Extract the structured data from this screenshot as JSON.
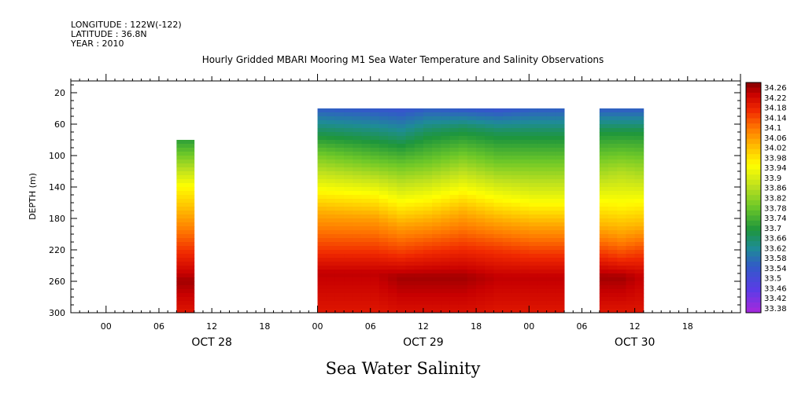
{
  "header": {
    "longitude": "LONGITUDE : 122W(-122)",
    "latitude": "LATITUDE : 36.8N",
    "year": "YEAR : 2010"
  },
  "colors": {
    "background": "#ffffff",
    "axis": "#000000"
  },
  "chart_data": {
    "type": "heatmap",
    "title": "Hourly Gridded MBARI Mooring M1 Sea Water Temperature and Salinity Observations",
    "subtitle": "Sea Water Salinity",
    "ylabel": "DEPTH (m)",
    "y_axis": {
      "inverted": true,
      "ylim": [
        5,
        300
      ],
      "ticks": [
        20,
        60,
        100,
        140,
        180,
        220,
        260,
        300
      ]
    },
    "x_axis": {
      "hour_ticks": [
        "00",
        "06",
        "12",
        "18",
        "00",
        "06",
        "12",
        "18",
        "00",
        "06",
        "12",
        "18"
      ],
      "day_labels": [
        "OCT 28",
        "OCT 29",
        "OCT 30"
      ],
      "start": "2010-10-27T20:00",
      "end": "2010-10-31T00:00"
    },
    "colorbar": {
      "min": 33.38,
      "max": 34.28,
      "labels": [
        "34.26",
        "34.22",
        "34.18",
        "34.14",
        "34.1",
        "34.06",
        "34.02",
        "33.98",
        "33.94",
        "33.9",
        "33.86",
        "33.82",
        "33.78",
        "33.74",
        "33.7",
        "33.66",
        "33.62",
        "33.58",
        "33.54",
        "33.5",
        "33.46",
        "33.42",
        "33.38"
      ]
    },
    "segments": [
      {
        "start": "2010-10-28T08:00",
        "end": "2010-10-28T09:00",
        "depth_top": 80,
        "columns": [
          {
            "time": "2010-10-28T08:00",
            "profile": [
              [
                80,
                33.72
              ],
              [
                120,
                33.88
              ],
              [
                140,
                33.96
              ],
              [
                180,
                34.06
              ],
              [
                220,
                34.16
              ],
              [
                260,
                34.26
              ],
              [
                300,
                34.2
              ]
            ]
          }
        ]
      },
      {
        "start": "2010-10-29T00:00",
        "end": "2010-10-30T03:00",
        "depth_top": 40,
        "columns": [
          {
            "time": "2010-10-29T00:00",
            "profile": [
              [
                40,
                33.56
              ],
              [
                70,
                33.68
              ],
              [
                100,
                33.8
              ],
              [
                140,
                33.94
              ],
              [
                170,
                34.04
              ],
              [
                220,
                34.16
              ],
              [
                250,
                34.24
              ],
              [
                300,
                34.2
              ]
            ]
          },
          {
            "time": "2010-10-29T06:00",
            "profile": [
              [
                40,
                33.55
              ],
              [
                70,
                33.66
              ],
              [
                110,
                33.8
              ],
              [
                150,
                33.96
              ],
              [
                180,
                34.06
              ],
              [
                220,
                34.16
              ],
              [
                250,
                34.24
              ],
              [
                300,
                34.2
              ]
            ]
          },
          {
            "time": "2010-10-29T09:00",
            "profile": [
              [
                40,
                33.54
              ],
              [
                75,
                33.66
              ],
              [
                120,
                33.82
              ],
              [
                160,
                33.96
              ],
              [
                190,
                34.06
              ],
              [
                225,
                34.16
              ],
              [
                255,
                34.26
              ],
              [
                300,
                34.21
              ]
            ]
          },
          {
            "time": "2010-10-29T12:00",
            "profile": [
              [
                40,
                33.56
              ],
              [
                70,
                33.68
              ],
              [
                110,
                33.8
              ],
              [
                150,
                33.94
              ],
              [
                180,
                34.04
              ],
              [
                220,
                34.16
              ],
              [
                255,
                34.26
              ],
              [
                300,
                34.21
              ]
            ]
          },
          {
            "time": "2010-10-29T16:00",
            "profile": [
              [
                40,
                33.55
              ],
              [
                65,
                33.68
              ],
              [
                100,
                33.8
              ],
              [
                140,
                33.94
              ],
              [
                170,
                34.04
              ],
              [
                215,
                34.16
              ],
              [
                255,
                34.26
              ],
              [
                300,
                34.21
              ]
            ]
          },
          {
            "time": "2010-10-29T20:00",
            "profile": [
              [
                40,
                33.54
              ],
              [
                70,
                33.68
              ],
              [
                110,
                33.8
              ],
              [
                150,
                33.94
              ],
              [
                180,
                34.04
              ],
              [
                220,
                34.16
              ],
              [
                255,
                34.24
              ],
              [
                300,
                34.2
              ]
            ]
          },
          {
            "time": "2010-10-30T00:00",
            "profile": [
              [
                40,
                33.56
              ],
              [
                70,
                33.68
              ],
              [
                110,
                33.8
              ],
              [
                150,
                33.92
              ],
              [
                185,
                34.04
              ],
              [
                225,
                34.16
              ],
              [
                255,
                34.24
              ],
              [
                300,
                34.2
              ]
            ]
          },
          {
            "time": "2010-10-30T03:00",
            "profile": [
              [
                40,
                33.56
              ],
              [
                70,
                33.68
              ],
              [
                110,
                33.8
              ],
              [
                150,
                33.92
              ],
              [
                185,
                34.04
              ],
              [
                225,
                34.16
              ],
              [
                255,
                34.24
              ],
              [
                300,
                34.2
              ]
            ]
          }
        ]
      },
      {
        "start": "2010-10-30T08:00",
        "end": "2010-10-30T12:00",
        "depth_top": 40,
        "columns": [
          {
            "time": "2010-10-30T08:00",
            "profile": [
              [
                40,
                33.56
              ],
              [
                70,
                33.7
              ],
              [
                110,
                33.82
              ],
              [
                160,
                33.96
              ],
              [
                190,
                34.04
              ],
              [
                220,
                34.14
              ],
              [
                255,
                34.26
              ],
              [
                300,
                34.2
              ]
            ]
          },
          {
            "time": "2010-10-30T10:00",
            "profile": [
              [
                40,
                33.56
              ],
              [
                70,
                33.7
              ],
              [
                120,
                33.86
              ],
              [
                170,
                33.98
              ],
              [
                200,
                34.06
              ],
              [
                230,
                34.16
              ],
              [
                255,
                34.26
              ],
              [
                300,
                34.2
              ]
            ]
          },
          {
            "time": "2010-10-30T12:00",
            "profile": [
              [
                40,
                33.56
              ],
              [
                70,
                33.7
              ],
              [
                110,
                33.82
              ],
              [
                160,
                33.96
              ],
              [
                190,
                34.04
              ],
              [
                220,
                34.14
              ],
              [
                255,
                34.24
              ],
              [
                300,
                34.2
              ]
            ]
          }
        ]
      }
    ]
  }
}
